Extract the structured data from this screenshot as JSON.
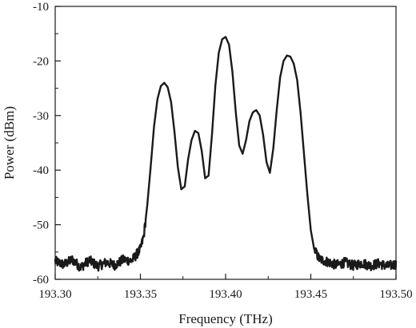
{
  "chart_data": {
    "type": "line",
    "title": "",
    "xlabel": "Frequency (THz)",
    "ylabel": "Power (dBm)",
    "xlim": [
      193.3,
      193.5
    ],
    "ylim": [
      -60,
      -10
    ],
    "xticks": [
      193.3,
      193.35,
      193.4,
      193.45,
      193.5
    ],
    "xtick_labels": [
      "193.30",
      "193.35",
      "193.40",
      "193.45",
      "193.50"
    ],
    "yticks": [
      -60,
      -50,
      -40,
      -30,
      -20,
      -10
    ],
    "ytick_labels": [
      "-60",
      "-50",
      "-40",
      "-30",
      "-20",
      "-10"
    ],
    "grid": false,
    "legend": "none",
    "line_color": "#1a1a1a",
    "series": [
      {
        "x": [
          193.3,
          193.305,
          193.31,
          193.315,
          193.32,
          193.325,
          193.33,
          193.335,
          193.34,
          193.345,
          193.35,
          193.352,
          193.354,
          193.356,
          193.358,
          193.36,
          193.362,
          193.364,
          193.366,
          193.368,
          193.37,
          193.372,
          193.374,
          193.376,
          193.378,
          193.38,
          193.382,
          193.384,
          193.386,
          193.388,
          193.39,
          193.392,
          193.394,
          193.396,
          193.398,
          193.4,
          193.402,
          193.404,
          193.406,
          193.408,
          193.41,
          193.412,
          193.414,
          193.416,
          193.418,
          193.42,
          193.422,
          193.424,
          193.426,
          193.428,
          193.43,
          193.432,
          193.434,
          193.436,
          193.438,
          193.44,
          193.442,
          193.444,
          193.446,
          193.448,
          193.45,
          193.452,
          193.455,
          193.46,
          193.465,
          193.47,
          193.475,
          193.48,
          193.485,
          193.49,
          193.495,
          193.5
        ],
        "y": [
          -56.7,
          -57.3,
          -56.4,
          -57.8,
          -56.5,
          -57.6,
          -56.9,
          -57.4,
          -56.4,
          -56.6,
          -54.5,
          -52.0,
          -46.5,
          -39.5,
          -32.0,
          -27.0,
          -24.6,
          -24.0,
          -24.8,
          -27.5,
          -33.0,
          -39.5,
          -43.5,
          -43.0,
          -38.0,
          -34.5,
          -32.8,
          -33.2,
          -36.5,
          -41.5,
          -41.0,
          -33.5,
          -24.5,
          -18.5,
          -16.0,
          -15.6,
          -17.0,
          -22.0,
          -29.5,
          -35.5,
          -37.0,
          -34.5,
          -31.0,
          -29.4,
          -29.0,
          -30.0,
          -33.5,
          -38.5,
          -40.5,
          -36.0,
          -29.0,
          -23.0,
          -20.0,
          -19.0,
          -19.2,
          -20.5,
          -23.5,
          -29.5,
          -37.0,
          -44.5,
          -51.0,
          -54.5,
          -56.3,
          -56.8,
          -57.4,
          -56.9,
          -57.5,
          -57.0,
          -57.5,
          -57.1,
          -57.6,
          -57.2
        ]
      }
    ]
  }
}
